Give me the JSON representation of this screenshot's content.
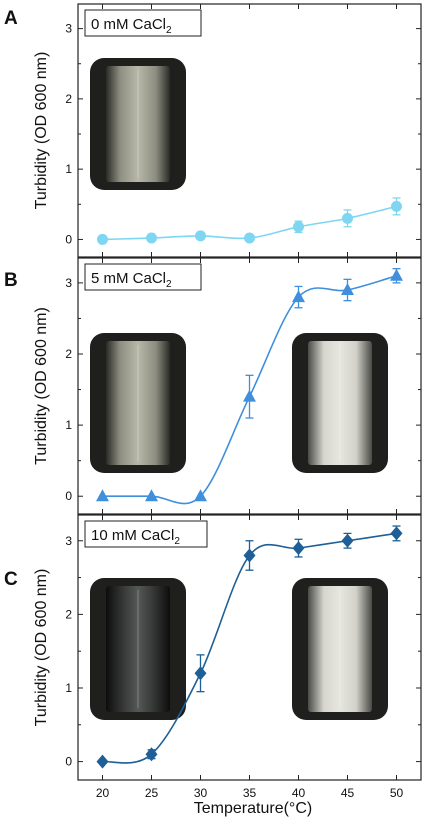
{
  "figure": {
    "x_axis_title": "Temperature(°C)",
    "y_axis_title": "Turbidity (OD 600 nm)"
  },
  "chart_data": [
    {
      "type": "line",
      "panel": "A",
      "label_main": "0 mM CaCl",
      "label_sub": "2",
      "marker": "circle",
      "color": "#7fd6f2",
      "xlabel": "Temperature(°C)",
      "ylabel": "Turbidity (OD 600 nm)",
      "x": [
        20,
        25,
        30,
        35,
        40,
        45,
        50
      ],
      "y": [
        0.0,
        0.02,
        0.05,
        0.02,
        0.18,
        0.3,
        0.47
      ],
      "err": [
        0.02,
        0.02,
        0.02,
        0.02,
        0.08,
        0.12,
        0.12
      ],
      "xlim": [
        17.5,
        52.5
      ],
      "ylim": [
        -0.25,
        3.35
      ],
      "yticks": [
        0,
        1,
        2,
        3
      ],
      "xticks": [
        20,
        25,
        30,
        35,
        40,
        45,
        50
      ],
      "grid": false,
      "photos": [
        "clear solution"
      ]
    },
    {
      "type": "line",
      "panel": "B",
      "label_main": "5 mM CaCl",
      "label_sub": "2",
      "marker": "triangle",
      "color": "#3f8fdc",
      "xlabel": "Temperature(°C)",
      "ylabel": "Turbidity (OD 600 nm)",
      "x": [
        20,
        25,
        30,
        35,
        40,
        45,
        50
      ],
      "y": [
        0.0,
        0.0,
        0.0,
        1.4,
        2.8,
        2.9,
        3.1
      ],
      "err": [
        0.02,
        0.02,
        0.02,
        0.3,
        0.15,
        0.15,
        0.1
      ],
      "xlim": [
        17.5,
        52.5
      ],
      "ylim": [
        -0.25,
        3.35
      ],
      "yticks": [
        0,
        1,
        2,
        3
      ],
      "xticks": [
        20,
        25,
        30,
        35,
        40,
        45,
        50
      ],
      "grid": false,
      "photos": [
        "clear solution",
        "turbid solution"
      ]
    },
    {
      "type": "line",
      "panel": "C",
      "label_main": "10 mM CaCl",
      "label_sub": "2",
      "marker": "diamond",
      "color": "#1d5f96",
      "xlabel": "Temperature(°C)",
      "ylabel": "Turbidity (OD 600 nm)",
      "x": [
        20,
        25,
        30,
        35,
        40,
        45,
        50
      ],
      "y": [
        0.0,
        0.1,
        1.2,
        2.8,
        2.9,
        3.0,
        3.1
      ],
      "err": [
        0.02,
        0.06,
        0.25,
        0.2,
        0.12,
        0.1,
        0.1
      ],
      "xlim": [
        17.5,
        52.5
      ],
      "ylim": [
        -0.25,
        3.35
      ],
      "yticks": [
        0,
        1,
        2,
        3
      ],
      "xticks": [
        20,
        25,
        30,
        35,
        40,
        45,
        50
      ],
      "grid": false,
      "photos": [
        "clear solution",
        "turbid solution"
      ]
    }
  ]
}
